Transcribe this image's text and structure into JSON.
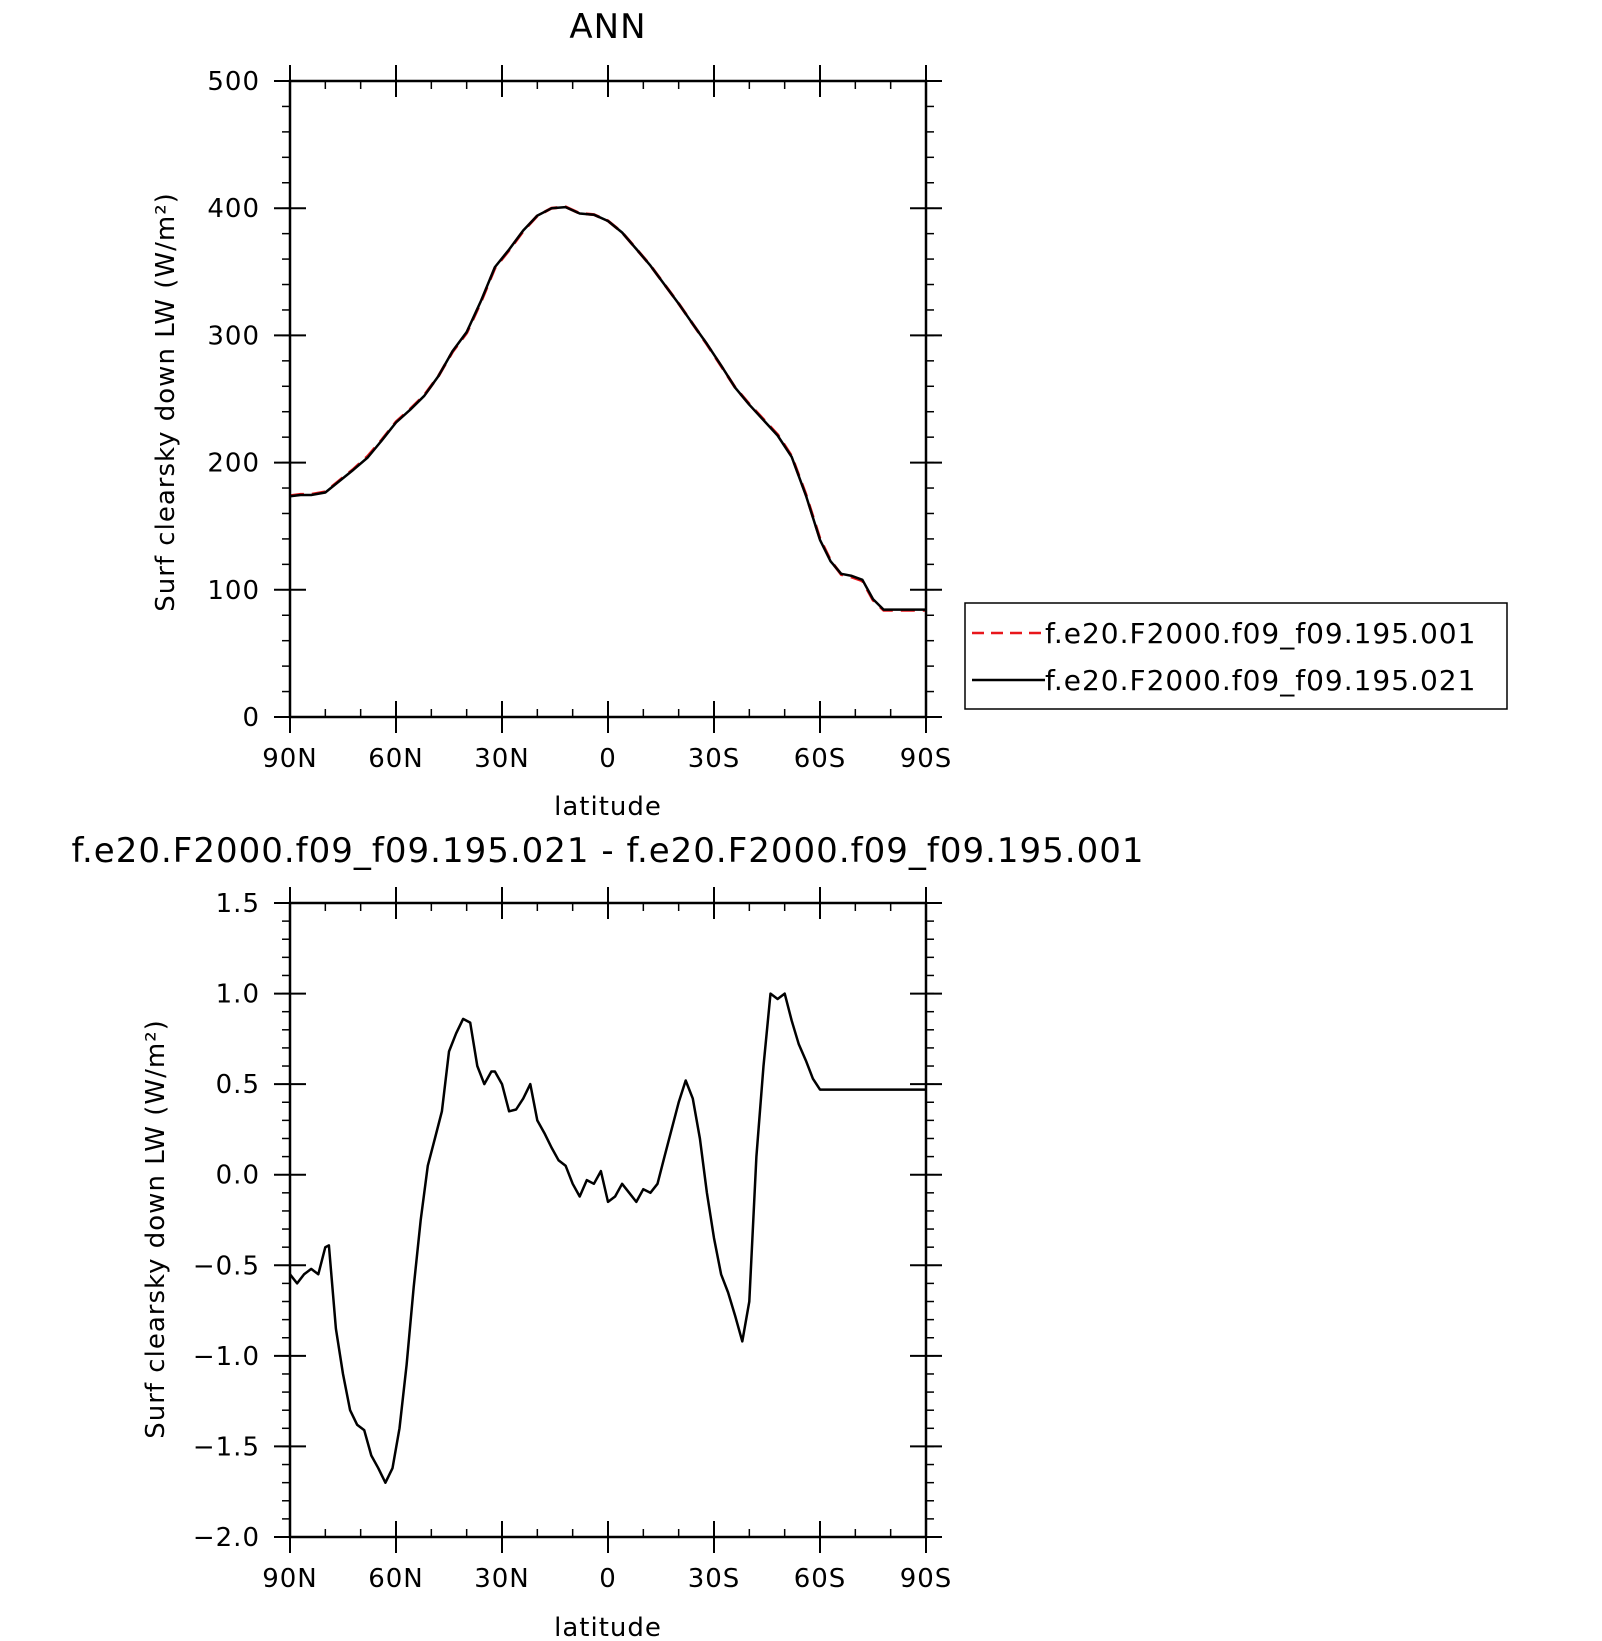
{
  "chart_data": [
    {
      "type": "line",
      "title": "ANN",
      "xlabel": "latitude",
      "ylabel": "Surf clearsky down LW (W/m²)",
      "xlim": [
        90,
        -90
      ],
      "ylim": [
        0,
        500
      ],
      "x_ticks": [
        {
          "value": 90,
          "label": "90N"
        },
        {
          "value": 60,
          "label": "60N"
        },
        {
          "value": 30,
          "label": "30N"
        },
        {
          "value": 0,
          "label": "0"
        },
        {
          "value": -30,
          "label": "30S"
        },
        {
          "value": -60,
          "label": "60S"
        },
        {
          "value": -90,
          "label": "90S"
        }
      ],
      "y_ticks": [
        {
          "value": 0,
          "label": "0"
        },
        {
          "value": 100,
          "label": "100"
        },
        {
          "value": 200,
          "label": "200"
        },
        {
          "value": 300,
          "label": "300"
        },
        {
          "value": 400,
          "label": "400"
        },
        {
          "value": 500,
          "label": "500"
        }
      ],
      "legend": {
        "placement": "right",
        "entries": [
          {
            "label": "f.e20.F2000.f09_f09.195.001",
            "color": "#e8161b",
            "dash": "dashed"
          },
          {
            "label": "f.e20.F2000.f09_f09.195.021",
            "color": "#000000",
            "dash": "solid"
          }
        ]
      },
      "series": [
        {
          "name": "f.e20.F2000.f09_f09.195.001",
          "color": "#e8161b",
          "dash": "dashed",
          "x": [
            90,
            87,
            84,
            80,
            76,
            72,
            68,
            64,
            60,
            56,
            52,
            48,
            44,
            40,
            36,
            32,
            28,
            24,
            20,
            16,
            12,
            8,
            4,
            0,
            -4,
            -8,
            -12,
            -16,
            -20,
            -24,
            -28,
            -32,
            -36,
            -40,
            -44,
            -48,
            -52,
            -56,
            -60,
            -63,
            -66,
            -69,
            -72,
            -75,
            -78,
            -81,
            -84,
            -87,
            -90
          ],
          "y": [
            174,
            175,
            175,
            177,
            186,
            195,
            205,
            218,
            232,
            242,
            253,
            268,
            287,
            302,
            326,
            353,
            367,
            382,
            394,
            400,
            401,
            396,
            395,
            390,
            381,
            368,
            355,
            340,
            325,
            309,
            293,
            276,
            259,
            246,
            234,
            222,
            205,
            175,
            140,
            123,
            112,
            110,
            107,
            92,
            84,
            84,
            84,
            84,
            84
          ]
        },
        {
          "name": "f.e20.F2000.f09_f09.195.021",
          "color": "#000000",
          "dash": "solid",
          "x": [
            90,
            87,
            84,
            80,
            76,
            72,
            68,
            64,
            60,
            56,
            52,
            48,
            44,
            40,
            36,
            32,
            28,
            24,
            20,
            16,
            12,
            8,
            4,
            0,
            -4,
            -8,
            -12,
            -16,
            -20,
            -24,
            -28,
            -32,
            -36,
            -40,
            -44,
            -48,
            -52,
            -56,
            -60,
            -63,
            -66,
            -69,
            -72,
            -75,
            -78,
            -81,
            -84,
            -87,
            -90
          ],
          "y": [
            173.5,
            174.5,
            174.5,
            176.5,
            185.5,
            194.5,
            204,
            217.5,
            231.5,
            241.5,
            252.5,
            268,
            287.5,
            302.7,
            326.8,
            353.7,
            367.5,
            382.5,
            394.2,
            399.9,
            400.9,
            395.8,
            394.9,
            389.9,
            380.9,
            367.9,
            354.9,
            339.9,
            324.9,
            308.9,
            293.3,
            276.4,
            258.9,
            245.5,
            233.4,
            221.3,
            204.5,
            174.2,
            139.2,
            122.4,
            112.6,
            110.9,
            107.9,
            92.7,
            84.4,
            84.4,
            84.4,
            84.4,
            84.4
          ]
        }
      ]
    },
    {
      "type": "line",
      "title": "f.e20.F2000.f09_f09.195.021 - f.e20.F2000.f09_f09.195.001",
      "xlabel": "latitude",
      "ylabel": "Surf clearsky down LW (W/m²)",
      "xlim": [
        90,
        -90
      ],
      "ylim": [
        -2.0,
        1.5
      ],
      "x_ticks": [
        {
          "value": 90,
          "label": "90N"
        },
        {
          "value": 60,
          "label": "60N"
        },
        {
          "value": 30,
          "label": "30N"
        },
        {
          "value": 0,
          "label": "0"
        },
        {
          "value": -30,
          "label": "30S"
        },
        {
          "value": -60,
          "label": "60S"
        },
        {
          "value": -90,
          "label": "90S"
        }
      ],
      "y_ticks": [
        {
          "value": -2.0,
          "label": "−2.0"
        },
        {
          "value": -1.5,
          "label": "−1.5"
        },
        {
          "value": -1.0,
          "label": "−1.0"
        },
        {
          "value": -0.5,
          "label": "−0.5"
        },
        {
          "value": 0.0,
          "label": "0.0"
        },
        {
          "value": 0.5,
          "label": "0.5"
        },
        {
          "value": 1.0,
          "label": "1.0"
        },
        {
          "value": 1.5,
          "label": "1.5"
        }
      ],
      "series": [
        {
          "color": "#000000",
          "dash": "solid",
          "x": [
            90,
            88,
            86,
            84,
            82,
            80,
            79,
            77,
            75,
            73,
            71,
            69,
            67,
            65,
            63,
            61,
            59,
            57,
            55,
            53,
            51,
            49,
            47,
            45,
            43,
            41,
            39,
            37,
            35,
            33,
            32,
            30,
            28,
            26,
            24,
            22,
            20,
            18,
            16,
            14,
            12,
            10,
            8,
            6,
            4,
            2,
            0,
            -2,
            -4,
            -6,
            -8,
            -10,
            -12,
            -14,
            -16,
            -18,
            -20,
            -22,
            -24,
            -26,
            -28,
            -30,
            -32,
            -34,
            -36,
            -38,
            -40,
            -42,
            -44,
            -46,
            -48,
            -50,
            -52,
            -54,
            -56,
            -58,
            -60,
            -62,
            -64,
            -65,
            -66,
            -68,
            -70,
            -72,
            -74,
            -76,
            -78,
            -80,
            -82,
            -84,
            -86,
            -88,
            -90
          ],
          "y": [
            -0.55,
            -0.6,
            -0.55,
            -0.52,
            -0.55,
            -0.4,
            -0.39,
            -0.85,
            -1.1,
            -1.3,
            -1.38,
            -1.41,
            -1.55,
            -1.62,
            -1.7,
            -1.62,
            -1.4,
            -1.05,
            -0.62,
            -0.25,
            0.05,
            0.2,
            0.35,
            0.68,
            0.78,
            0.86,
            0.84,
            0.6,
            0.5,
            0.57,
            0.57,
            0.5,
            0.35,
            0.36,
            0.42,
            0.5,
            0.3,
            0.23,
            0.15,
            0.08,
            0.05,
            -0.05,
            -0.12,
            -0.03,
            -0.05,
            0.02,
            -0.15,
            -0.12,
            -0.05,
            -0.1,
            -0.15,
            -0.08,
            -0.1,
            -0.05,
            0.1,
            0.25,
            0.4,
            0.52,
            0.42,
            0.2,
            -0.1,
            -0.35,
            -0.55,
            -0.65,
            -0.78,
            -0.92,
            -0.7,
            0.1,
            0.6,
            1.0,
            0.97,
            1.0,
            0.85,
            0.72,
            0.63,
            0.53,
            0.47,
            0.47,
            0.47,
            0.47,
            0.47,
            0.47,
            0.47,
            0.47,
            0.47,
            0.47,
            0.47,
            0.47,
            0.47,
            0.47,
            0.47,
            0.47,
            0.47
          ]
        }
      ]
    }
  ]
}
